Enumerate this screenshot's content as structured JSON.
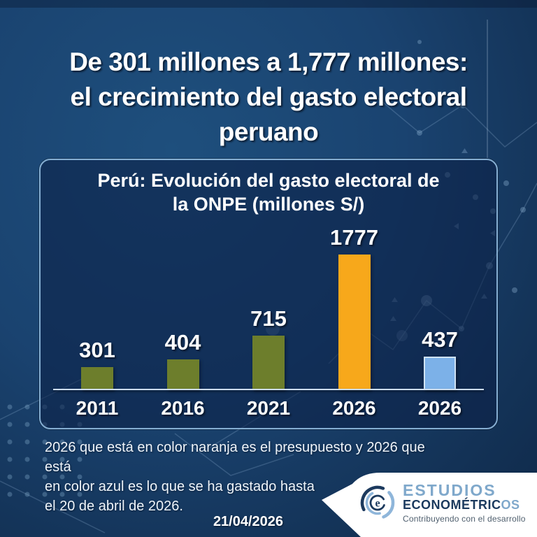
{
  "header": {
    "title_lines": [
      "De 301 millones a 1,777 millones:",
      "el crecimiento del gasto electoral",
      "peruano"
    ]
  },
  "chart_data": {
    "type": "bar",
    "title": "Perú: Evolución del gasto electoral de la ONPE (millones S/)",
    "title_lines": [
      "Perú: Evolución del gasto electoral de",
      "la ONPE (millones S/)"
    ],
    "categories": [
      "2011",
      "2016",
      "2021",
      "2026",
      "2026"
    ],
    "values": [
      301,
      404,
      715,
      1777,
      437
    ],
    "bar_colors": [
      "#6d7e2c",
      "#6d7e2c",
      "#6d7e2c",
      "#f7a81b",
      "#7cb1e8"
    ],
    "bar_border_colors": [
      "",
      "",
      "",
      "",
      "#cfe3f6"
    ],
    "ylim": [
      0,
      1900
    ],
    "grid": false,
    "legend": false,
    "axis_line_color": "#cdddee"
  },
  "footnote": {
    "lines": [
      "2026 que está en color naranja es el presupuesto y 2026 que está",
      "en color azul es lo que se ha gastado hasta",
      "el 20 de abril de 2026."
    ]
  },
  "date_label": "21/04/2026",
  "logo": {
    "brand_line1": "ESTUDIOS",
    "brand_line2_main": "ECONOMÉTRIC",
    "brand_line2_end": "OS",
    "tagline": "Contribuyendo con el desarrollo",
    "monogram": "e"
  },
  "colors": {
    "background": "#1a4370",
    "panel_fill": "#152f55",
    "panel_border": "#85aed2",
    "bar_green": "#6d7e2c",
    "bar_orange": "#f7a81b",
    "bar_blue": "#7cb1e8",
    "logo_light_blue": "#7fa8cb",
    "logo_navy": "#1b3a5e"
  }
}
